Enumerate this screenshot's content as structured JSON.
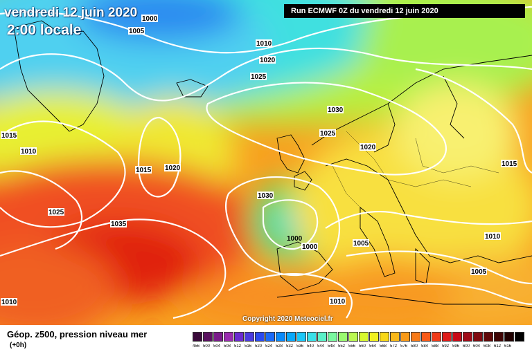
{
  "map": {
    "date_title": "vendredi 12 juin 2020",
    "time_title": "2:00 locale",
    "run_label": "Run ECMWF 0Z du vendredi 12 juin 2020",
    "copyright": "Copyright 2020 Meteociel.fr",
    "isobar_labels": [
      "1000",
      "1005",
      "1010",
      "1020",
      "1025",
      "1030",
      "1025",
      "1020",
      "1015",
      "1010",
      "1015",
      "1020",
      "1025",
      "1035",
      "1030",
      "1015",
      "1000",
      "1005",
      "1010",
      "1020",
      "1010",
      "1005",
      "1010",
      "1010",
      "1015",
      "1020"
    ],
    "low_center": "1000"
  },
  "legend": {
    "field_title": "Géop. z500, pression niveau mer",
    "lead_time": "(+0h)",
    "colors": [
      "#3a0a3a",
      "#5a1060",
      "#7a1a8a",
      "#9a2ab0",
      "#6a2ad0",
      "#4a3ae0",
      "#2a4af0",
      "#1a6af8",
      "#0a8afa",
      "#0aa8fa",
      "#1ac8f8",
      "#3ae0e8",
      "#5af0c8",
      "#7af8a0",
      "#9afa70",
      "#baf850",
      "#d8f830",
      "#f0f020",
      "#f8d818",
      "#f8b818",
      "#f89a18",
      "#f87a18",
      "#f85a18",
      "#f03a18",
      "#e01a18",
      "#c80a18",
      "#a00a18",
      "#800a10",
      "#600808",
      "#400404",
      "#200000",
      "#000000"
    ],
    "ticks": [
      "456",
      "500",
      "504",
      "508",
      "512",
      "516",
      "520",
      "524",
      "528",
      "532",
      "536",
      "540",
      "544",
      "548",
      "552",
      "556",
      "560",
      "564",
      "568",
      "572",
      "576",
      "580",
      "584",
      "588",
      "592",
      "596",
      "600",
      "604",
      "608",
      "612",
      "616"
    ]
  }
}
